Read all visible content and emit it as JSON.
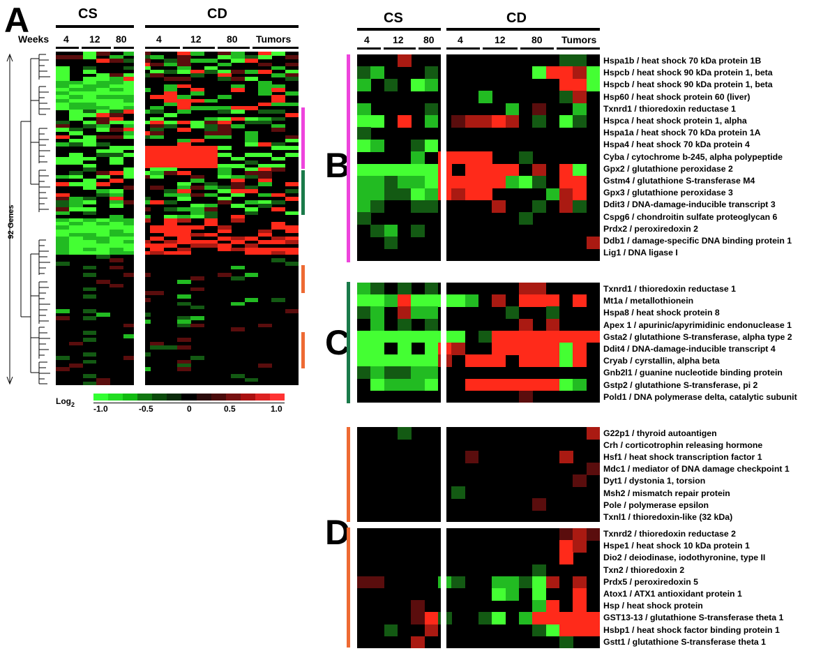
{
  "panels": {
    "A": "A",
    "B": "B",
    "C": "C",
    "D": "D"
  },
  "panel_a": {
    "weeks_label": "Weeks",
    "cs_label": "CS",
    "cd_label": "CD",
    "cs_ticks": [
      "4",
      "12",
      "80"
    ],
    "cd_ticks": [
      "4",
      "12",
      "80",
      "Tumors"
    ],
    "genes_axis": "92 Genes",
    "legend_title": "Log",
    "legend_sub": "2",
    "legend_ticks": [
      "-1.0",
      "-0.5",
      "0",
      "0.5",
      "1.0"
    ],
    "legend_colors": [
      "#33ff33",
      "#22dd22",
      "#11bb11",
      "#117711",
      "#0b4a0b",
      "#0a2a0a",
      "#000000",
      "#2a0a0a",
      "#4a0b0b",
      "#771111",
      "#aa1111",
      "#dd2222",
      "#ff3333"
    ]
  },
  "right_header": {
    "cs_label": "CS",
    "cd_label": "CD",
    "cs_ticks": [
      "4",
      "12",
      "80"
    ],
    "cd_ticks": [
      "4",
      "12",
      "80",
      "Tumors"
    ]
  },
  "colors": {
    "magenta": "#ee44dd",
    "green_bar": "#1a7a4a",
    "orange": "#ee6a33"
  },
  "panel_b_genes": [
    "Hspa1b / heat shock 70 kDa protein 1B",
    "Hspcb / heat shock 90 kDa protein 1, beta",
    "Hspcb / heat shock 90 kDa protein 1, beta",
    "Hsp60 / heat shock protein 60 (liver)",
    "Txnrd1 / thioredoxin reductase 1",
    "Hspca / heat shock protein 1, alpha",
    "Hspa1a / heat shock 70 kDa protein 1A",
    "Hspa4 / heat shock 70 kDa protein 4",
    "Cyba / cytochrome b-245, alpha polypeptide",
    "Gpx2 / glutathione peroxidase 2",
    "Gstm4 / glutathione S-transferase M4",
    "Gpx3 / glutathione peroxidase 3",
    "Ddit3 / DNA-damage-inducible transcript 3",
    "Cspg6 / chondroitin sulfate proteoglycan 6",
    "Prdx2 / peroxiredoxin 2",
    "Ddb1 / damage-specific DNA binding protein 1",
    "Lig1 / DNA ligase I"
  ],
  "panel_c_genes": [
    "Txnrd1 / thioredoxin reductase 1",
    "Mt1a / metallothionein",
    "Hspa8 / heat shock protein 8",
    "Apex 1 / apurinic/apyrimidinic endonuclease 1",
    "Gsta2 / glutathione S-transferase, alpha type 2",
    "Ddit4 / DNA-damage-inducible transcript 4",
    "Cryab / cyrstallin, alpha beta",
    "Gnb2l1 / guanine nucleotide binding protein",
    "Gstp2 / glutathione S-transferase, pi 2",
    "Pold1 / DNA polymerase delta, catalytic subunit"
  ],
  "panel_d1_genes": [
    "G22p1 / thyroid autoantigen",
    "Crh / corticotrophin releasing hormone",
    "Hsf1 / heat shock transcription factor 1",
    "Mdc1 / mediator of DNA damage checkpoint 1",
    "Dyt1 / dystonia 1, torsion",
    "Msh2 / mismatch repair protein",
    "Pole / polymerase epsilon",
    "Txnl1 / thioredoxin-like (32 kDa)"
  ],
  "panel_d2_genes": [
    "Txnrd2 / thioredoxin reductase 2",
    "Hspe1 / heat shock 10 kDa protein 1",
    "Dio2 / deiodinase, iodothyronine, type II",
    "Txn2 / thioredoxin 2",
    "Prdx5 / peroxiredoxin 5",
    "Atox1 / ATX1 antioxidant protein 1",
    "Hsp / heat shock protein",
    "GST13-13 / glutathione S-transferase theta 1",
    "Hsbp1 / heat shock factor binding protein 1",
    "Gstt1 / glutathione S-transferase theta 1"
  ]
}
